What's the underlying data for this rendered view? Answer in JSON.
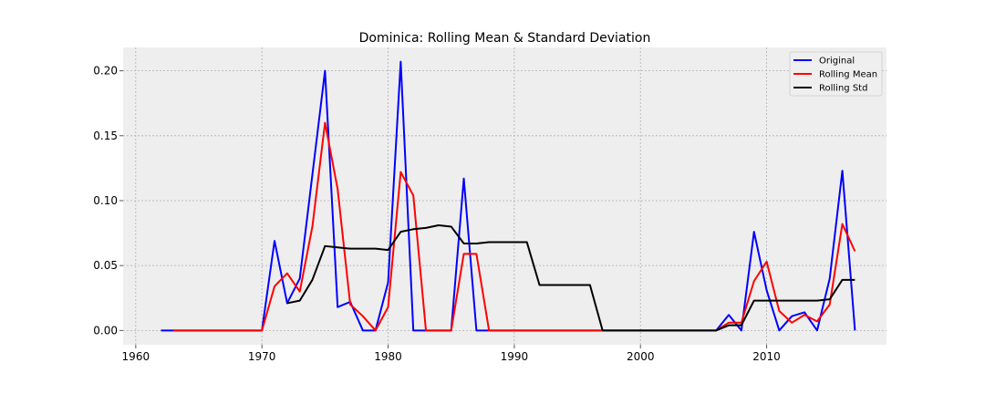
{
  "chart_data": {
    "type": "line",
    "title": "Dominica: Rolling Mean & Standard Deviation",
    "xlabel": "",
    "ylabel": "",
    "xlim": [
      1959,
      2019.5
    ],
    "ylim": [
      -0.011,
      0.218
    ],
    "x_ticks": [
      1960,
      1970,
      1980,
      1990,
      2000,
      2010
    ],
    "x_tick_labels": [
      "1960",
      "1970",
      "1980",
      "1990",
      "2000",
      "2010"
    ],
    "y_ticks": [
      0.0,
      0.05,
      0.1,
      0.15,
      0.2
    ],
    "y_tick_labels": [
      "0.00",
      "0.05",
      "0.10",
      "0.15",
      "0.20"
    ],
    "grid": true,
    "legend_position": "top-right",
    "series": [
      {
        "name": "Original",
        "color": "#0000ff",
        "points": [
          [
            1962,
            0
          ],
          [
            1963,
            0
          ],
          [
            1964,
            0
          ],
          [
            1965,
            0
          ],
          [
            1966,
            0
          ],
          [
            1967,
            0
          ],
          [
            1968,
            0
          ],
          [
            1969,
            0
          ],
          [
            1970,
            0
          ],
          [
            1971,
            0.069
          ],
          [
            1972,
            0.021
          ],
          [
            1973,
            0.04
          ],
          [
            1974,
            0.12
          ],
          [
            1975,
            0.2
          ],
          [
            1976,
            0.018
          ],
          [
            1977,
            0.022
          ],
          [
            1978,
            0
          ],
          [
            1979,
            0
          ],
          [
            1980,
            0.037
          ],
          [
            1981,
            0.207
          ],
          [
            1982,
            0
          ],
          [
            1983,
            0
          ],
          [
            1984,
            0
          ],
          [
            1985,
            0
          ],
          [
            1986,
            0.117
          ],
          [
            1987,
            0
          ],
          [
            1988,
            0
          ],
          [
            1989,
            0
          ],
          [
            1990,
            0
          ],
          [
            1991,
            0
          ],
          [
            1992,
            0
          ],
          [
            1993,
            0
          ],
          [
            1994,
            0
          ],
          [
            1995,
            0
          ],
          [
            1996,
            0
          ],
          [
            1997,
            0
          ],
          [
            1998,
            0
          ],
          [
            1999,
            0
          ],
          [
            2000,
            0
          ],
          [
            2001,
            0
          ],
          [
            2002,
            0
          ],
          [
            2003,
            0
          ],
          [
            2004,
            0
          ],
          [
            2005,
            0
          ],
          [
            2006,
            0
          ],
          [
            2007,
            0.012
          ],
          [
            2008,
            0
          ],
          [
            2009,
            0.076
          ],
          [
            2010,
            0.031
          ],
          [
            2011,
            0
          ],
          [
            2012,
            0.011
          ],
          [
            2013,
            0.014
          ],
          [
            2014,
            0
          ],
          [
            2015,
            0.04
          ],
          [
            2016,
            0.123
          ],
          [
            2017,
            0
          ]
        ]
      },
      {
        "name": "Rolling Mean",
        "color": "#ff0000",
        "points": [
          [
            1963,
            0
          ],
          [
            1964,
            0
          ],
          [
            1965,
            0
          ],
          [
            1966,
            0
          ],
          [
            1967,
            0
          ],
          [
            1968,
            0
          ],
          [
            1969,
            0
          ],
          [
            1970,
            0
          ],
          [
            1971,
            0.034
          ],
          [
            1972,
            0.044
          ],
          [
            1973,
            0.03
          ],
          [
            1974,
            0.08
          ],
          [
            1975,
            0.16
          ],
          [
            1976,
            0.109
          ],
          [
            1977,
            0.02
          ],
          [
            1978,
            0.011
          ],
          [
            1979,
            0
          ],
          [
            1980,
            0.018
          ],
          [
            1981,
            0.122
          ],
          [
            1982,
            0.104
          ],
          [
            1983,
            0
          ],
          [
            1984,
            0
          ],
          [
            1985,
            0
          ],
          [
            1986,
            0.059
          ],
          [
            1987,
            0.059
          ],
          [
            1988,
            0
          ],
          [
            1989,
            0
          ],
          [
            1990,
            0
          ],
          [
            1991,
            0
          ],
          [
            1992,
            0
          ],
          [
            1993,
            0
          ],
          [
            1994,
            0
          ],
          [
            1995,
            0
          ],
          [
            1996,
            0
          ],
          [
            1997,
            0
          ],
          [
            1998,
            0
          ],
          [
            1999,
            0
          ],
          [
            2000,
            0
          ],
          [
            2001,
            0
          ],
          [
            2002,
            0
          ],
          [
            2003,
            0
          ],
          [
            2004,
            0
          ],
          [
            2005,
            0
          ],
          [
            2006,
            0
          ],
          [
            2007,
            0.006
          ],
          [
            2008,
            0.006
          ],
          [
            2009,
            0.038
          ],
          [
            2010,
            0.053
          ],
          [
            2011,
            0.015
          ],
          [
            2012,
            0.006
          ],
          [
            2013,
            0.012
          ],
          [
            2014,
            0.007
          ],
          [
            2015,
            0.02
          ],
          [
            2016,
            0.082
          ],
          [
            2017,
            0.061
          ]
        ]
      },
      {
        "name": "Rolling Std",
        "color": "#000000",
        "points": [
          [
            1972,
            0.021
          ],
          [
            1973,
            0.023
          ],
          [
            1974,
            0.039
          ],
          [
            1975,
            0.065
          ],
          [
            1976,
            0.064
          ],
          [
            1977,
            0.063
          ],
          [
            1978,
            0.063
          ],
          [
            1979,
            0.063
          ],
          [
            1980,
            0.062
          ],
          [
            1981,
            0.076
          ],
          [
            1982,
            0.078
          ],
          [
            1983,
            0.079
          ],
          [
            1984,
            0.081
          ],
          [
            1985,
            0.08
          ],
          [
            1986,
            0.067
          ],
          [
            1987,
            0.067
          ],
          [
            1988,
            0.068
          ],
          [
            1989,
            0.068
          ],
          [
            1990,
            0.068
          ],
          [
            1991,
            0.068
          ],
          [
            1992,
            0.035
          ],
          [
            1993,
            0.035
          ],
          [
            1994,
            0.035
          ],
          [
            1995,
            0.035
          ],
          [
            1996,
            0.035
          ],
          [
            1997,
            0
          ],
          [
            1998,
            0
          ],
          [
            1999,
            0
          ],
          [
            2000,
            0
          ],
          [
            2001,
            0
          ],
          [
            2002,
            0
          ],
          [
            2003,
            0
          ],
          [
            2004,
            0
          ],
          [
            2005,
            0
          ],
          [
            2006,
            0
          ],
          [
            2007,
            0.004
          ],
          [
            2008,
            0.004
          ],
          [
            2009,
            0.023
          ],
          [
            2010,
            0.023
          ],
          [
            2011,
            0.023
          ],
          [
            2012,
            0.023
          ],
          [
            2013,
            0.023
          ],
          [
            2014,
            0.023
          ],
          [
            2015,
            0.024
          ],
          [
            2016,
            0.039
          ],
          [
            2017,
            0.039
          ]
        ]
      }
    ]
  }
}
